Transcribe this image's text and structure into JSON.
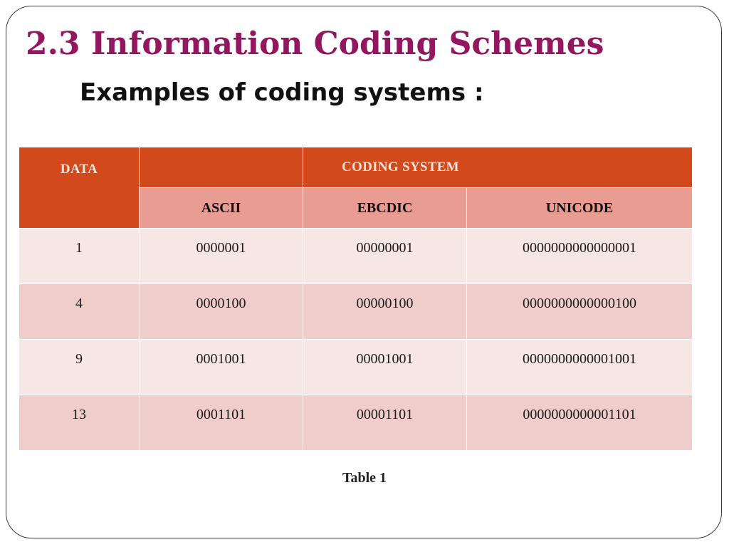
{
  "slide": {
    "title": "2.3 Information Coding Schemes",
    "subtitle": "Examples of coding systems :",
    "caption": "Table 1"
  },
  "table": {
    "data_header": "DATA",
    "group_header": "CODING SYSTEM",
    "columns": [
      "ASCII",
      "EBCDIC",
      "UNICODE"
    ],
    "rows": [
      [
        "1",
        "0000001",
        "00000001",
        "0000000000000001"
      ],
      [
        "4",
        "0000100",
        "00000100",
        "0000000000000100"
      ],
      [
        "9",
        "0001001",
        "00001001",
        "0000000000001001"
      ],
      [
        "13",
        "0001101",
        "00001101",
        "0000000000001101"
      ]
    ]
  },
  "colors": {
    "title": "#93175f",
    "header_dark": "#d24a1c",
    "header_light": "#e99c92",
    "row_odd": "#f6e7e5",
    "row_even": "#efcdca"
  }
}
